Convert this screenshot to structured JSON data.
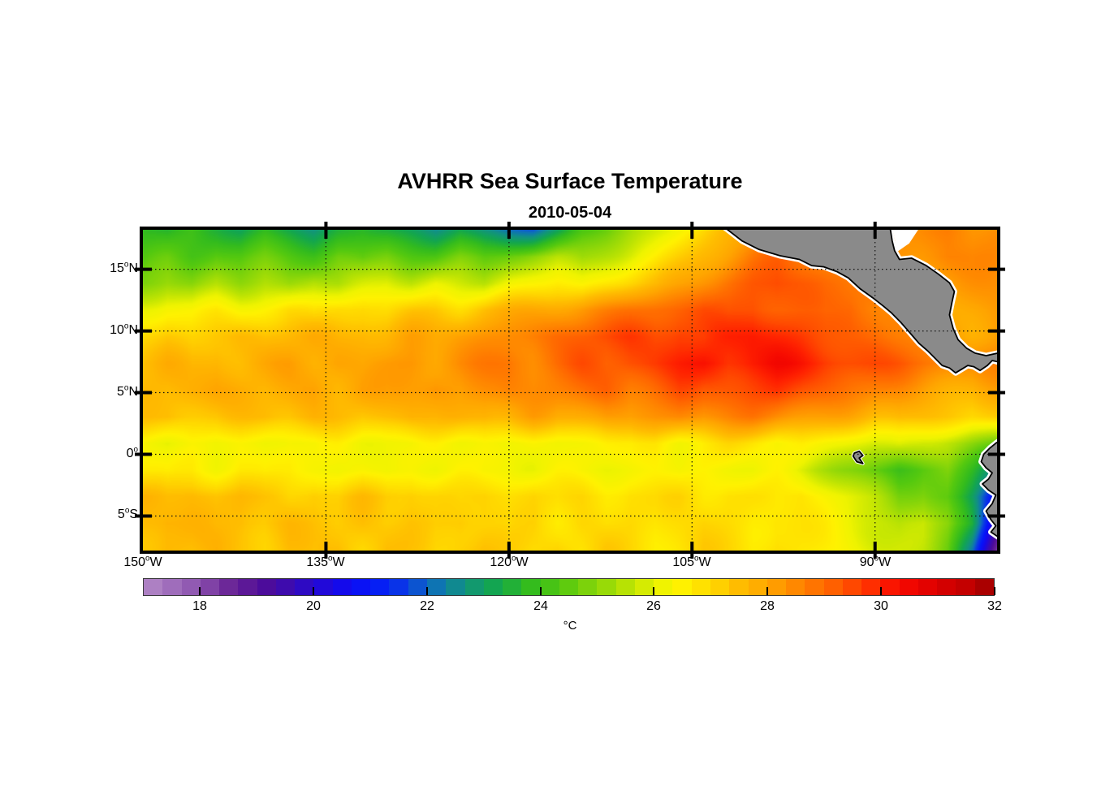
{
  "chart_data": {
    "type": "heatmap",
    "title": "AVHRR Sea Surface Temperature",
    "date": "2010-05-04",
    "units": "°C",
    "lon_range": [
      -150,
      -80
    ],
    "lat_range": [
      -7.8,
      18.2
    ],
    "grid": "on-dotted",
    "lon_ticks": [
      {
        "lon": -150,
        "label": "150",
        "deg": "o",
        "dir": "W"
      },
      {
        "lon": -135,
        "label": "135",
        "deg": "o",
        "dir": "W"
      },
      {
        "lon": -120,
        "label": "120",
        "deg": "o",
        "dir": "W"
      },
      {
        "lon": -105,
        "label": "105",
        "deg": "o",
        "dir": "W"
      },
      {
        "lon": -90,
        "label": "90",
        "deg": "o",
        "dir": "W"
      }
    ],
    "lat_ticks": [
      {
        "lat": 15,
        "label": "15",
        "deg": "o",
        "dir": "N"
      },
      {
        "lat": 10,
        "label": "10",
        "deg": "o",
        "dir": "N"
      },
      {
        "lat": 5,
        "label": "5",
        "deg": "o",
        "dir": "N"
      },
      {
        "lat": 0,
        "label": "0",
        "deg": "o",
        "dir": ""
      },
      {
        "lat": -5,
        "label": "5",
        "deg": "o",
        "dir": "S"
      }
    ],
    "colorbar": {
      "orientation": "horizontal",
      "min": 17,
      "max": 32,
      "segments": 45,
      "tick_values": [
        18,
        20,
        22,
        24,
        26,
        28,
        30,
        32
      ],
      "tick_labels": [
        "18",
        "20",
        "22",
        "24",
        "26",
        "28",
        "30",
        "32"
      ]
    },
    "colormap_stops": [
      [
        17.0,
        "#b48ac8"
      ],
      [
        18.0,
        "#8a50ad"
      ],
      [
        18.6,
        "#662094"
      ],
      [
        19.2,
        "#4b0b9b"
      ],
      [
        19.8,
        "#300ac0"
      ],
      [
        20.4,
        "#1708e8"
      ],
      [
        21.0,
        "#0515fa"
      ],
      [
        21.6,
        "#0a3ae4"
      ],
      [
        22.1,
        "#0e6fba"
      ],
      [
        22.6,
        "#119184"
      ],
      [
        23.2,
        "#13a64e"
      ],
      [
        23.8,
        "#32bb1e"
      ],
      [
        24.4,
        "#55c90f"
      ],
      [
        25.0,
        "#8ad609"
      ],
      [
        25.6,
        "#bfe403"
      ],
      [
        26.1,
        "#eef300"
      ],
      [
        26.5,
        "#fff200"
      ],
      [
        27.0,
        "#ffd900"
      ],
      [
        27.5,
        "#ffbc00"
      ],
      [
        28.0,
        "#ffa500"
      ],
      [
        28.5,
        "#ff8800"
      ],
      [
        29.0,
        "#ff6a00"
      ],
      [
        29.5,
        "#ff4800"
      ],
      [
        30.0,
        "#ff2000"
      ],
      [
        30.4,
        "#f50800"
      ],
      [
        31.0,
        "#dc0000"
      ],
      [
        31.5,
        "#c40000"
      ],
      [
        32.0,
        "#9c0000"
      ]
    ],
    "sst_field": {
      "lon_start": -150,
      "lon_step": 2,
      "n_lon": 36,
      "lat_start": 18.2,
      "lat_end": -7.8,
      "n_lat": 13,
      "values_degC": [
        [
          23.8,
          23.5,
          24.0,
          23.6,
          23.1,
          23.7,
          23.2,
          22.6,
          23.4,
          23.8,
          23.5,
          23.0,
          22.5,
          23.2,
          22.6,
          22.2,
          22.0,
          23.0,
          24.2,
          24.6,
          25.2,
          25.8,
          26.4,
          27.0,
          27.6,
          28.0,
          28.3,
          28.3,
          28.3,
          28.3,
          28.3,
          28.3,
          28.4,
          28.6,
          28.4,
          28.5
        ],
        [
          24.2,
          24.5,
          24.2,
          24.6,
          24.3,
          24.6,
          24.4,
          24.2,
          24.7,
          24.4,
          24.8,
          24.5,
          24.3,
          24.7,
          24.4,
          24.8,
          25.1,
          25.4,
          25.1,
          25.6,
          26.0,
          26.5,
          27.1,
          27.7,
          28.2,
          28.7,
          29.0,
          28.7,
          28.6,
          28.5,
          28.4,
          28.3,
          28.4,
          28.6,
          28.4,
          28.5
        ],
        [
          24.8,
          25.2,
          24.9,
          25.4,
          25.1,
          25.5,
          25.2,
          25.6,
          25.3,
          25.7,
          26.0,
          25.7,
          26.1,
          25.8,
          25.5,
          26.1,
          26.4,
          26.7,
          26.4,
          26.8,
          27.1,
          27.4,
          27.9,
          28.4,
          28.9,
          29.3,
          29.5,
          29.2,
          28.9,
          28.8,
          29.0,
          28.8,
          28.3,
          28.0,
          28.2,
          28.4
        ],
        [
          26.2,
          26.5,
          26.3,
          26.6,
          26.4,
          26.7,
          26.9,
          26.7,
          27.0,
          27.1,
          26.9,
          27.2,
          27.3,
          27.1,
          27.5,
          27.7,
          27.9,
          28.1,
          28.3,
          28.5,
          28.8,
          29.0,
          29.2,
          29.4,
          29.2,
          29.5,
          29.3,
          29.1,
          28.9,
          29.1,
          28.8,
          28.5,
          28.1,
          27.8,
          28.0,
          28.2
        ],
        [
          27.0,
          27.3,
          27.1,
          27.4,
          27.6,
          27.4,
          27.6,
          27.8,
          27.6,
          27.8,
          27.7,
          28.0,
          27.8,
          28.1,
          28.3,
          28.5,
          28.7,
          29.0,
          29.2,
          29.4,
          29.6,
          29.5,
          29.8,
          29.6,
          29.9,
          30.1,
          29.9,
          29.7,
          29.4,
          29.2,
          29.0,
          28.7,
          28.4,
          28.1,
          27.9,
          28.2
        ],
        [
          27.5,
          27.7,
          27.5,
          27.8,
          27.6,
          27.8,
          28.0,
          27.8,
          28.1,
          27.9,
          28.1,
          28.3,
          28.1,
          28.4,
          28.6,
          28.8,
          28.6,
          29.0,
          29.3,
          29.1,
          29.5,
          29.7,
          30.0,
          30.2,
          29.9,
          30.2,
          30.3,
          30.1,
          29.8,
          29.6,
          29.4,
          29.2,
          28.9,
          28.6,
          28.4,
          28.6
        ],
        [
          27.7,
          27.5,
          27.8,
          28.0,
          27.8,
          27.6,
          27.8,
          28.1,
          27.8,
          28.1,
          27.9,
          28.1,
          28.4,
          28.1,
          28.4,
          28.6,
          28.4,
          28.6,
          28.8,
          29.1,
          28.8,
          29.1,
          29.4,
          29.1,
          29.4,
          29.6,
          29.8,
          29.4,
          29.1,
          28.8,
          28.6,
          28.4,
          28.1,
          27.9,
          27.7,
          27.9
        ],
        [
          27.4,
          27.6,
          27.4,
          27.2,
          27.4,
          27.6,
          27.5,
          27.7,
          27.5,
          27.3,
          27.5,
          27.7,
          27.5,
          27.7,
          27.9,
          27.7,
          28.0,
          27.7,
          28.0,
          28.2,
          28.0,
          28.3,
          28.5,
          28.3,
          28.5,
          28.7,
          28.5,
          28.3,
          28.0,
          27.8,
          27.5,
          27.7,
          27.5,
          27.3,
          27.0,
          27.3
        ],
        [
          26.3,
          26.1,
          26.4,
          26.2,
          26.4,
          26.2,
          26.4,
          26.2,
          26.4,
          26.2,
          26.4,
          26.2,
          26.4,
          26.2,
          26.4,
          26.2,
          26.4,
          26.2,
          26.4,
          26.6,
          26.4,
          26.7,
          26.4,
          26.7,
          26.9,
          26.7,
          26.4,
          26.6,
          26.3,
          26.1,
          25.9,
          26.1,
          25.7,
          25.4,
          25.1,
          24.8
        ],
        [
          26.6,
          26.4,
          26.7,
          26.4,
          26.7,
          26.4,
          26.6,
          26.4,
          26.2,
          26.4,
          26.2,
          26.4,
          26.2,
          26.4,
          26.2,
          26.4,
          26.2,
          26.4,
          26.2,
          26.1,
          26.3,
          26.5,
          26.3,
          26.5,
          26.3,
          26.1,
          26.3,
          25.9,
          25.5,
          25.0,
          24.4,
          23.9,
          24.5,
          24.9,
          23.8,
          22.4
        ],
        [
          27.6,
          27.4,
          27.6,
          27.4,
          27.6,
          27.3,
          27.1,
          27.4,
          27.1,
          27.4,
          27.2,
          27.4,
          27.1,
          26.9,
          27.1,
          26.9,
          27.1,
          26.8,
          27.0,
          26.8,
          27.0,
          26.8,
          27.0,
          26.8,
          27.0,
          26.8,
          26.6,
          26.8,
          26.4,
          26.0,
          25.5,
          24.8,
          25.1,
          24.5,
          22.8,
          20.4
        ],
        [
          27.6,
          27.8,
          27.6,
          27.4,
          27.6,
          27.4,
          27.6,
          27.4,
          27.2,
          27.4,
          27.2,
          27.4,
          27.2,
          27.4,
          27.1,
          26.8,
          27.1,
          26.8,
          27.1,
          26.8,
          27.0,
          26.7,
          26.9,
          27.1,
          26.9,
          26.7,
          26.9,
          26.7,
          26.5,
          26.2,
          25.9,
          25.5,
          25.7,
          25.0,
          23.4,
          19.6
        ],
        [
          27.4,
          27.7,
          27.4,
          27.7,
          27.4,
          27.2,
          27.5,
          27.2,
          27.5,
          27.2,
          27.5,
          27.2,
          27.0,
          27.3,
          27.5,
          27.2,
          26.9,
          27.2,
          26.9,
          27.2,
          26.9,
          26.7,
          26.9,
          27.2,
          26.9,
          26.7,
          27.0,
          26.7,
          26.5,
          26.3,
          26.0,
          25.8,
          25.4,
          24.6,
          22.4,
          18.4
        ]
      ]
    },
    "land": {
      "fill": "#8a8a8a",
      "outline": "#000000",
      "fringe": "#ffffff",
      "polygons": {
        "central_america": [
          [
            -102.6,
            18.6
          ],
          [
            -100.9,
            17.3
          ],
          [
            -99.5,
            16.6
          ],
          [
            -97.8,
            16.1
          ],
          [
            -96.2,
            15.8
          ],
          [
            -95.2,
            15.3
          ],
          [
            -94.2,
            15.2
          ],
          [
            -93.1,
            14.8
          ],
          [
            -92.2,
            14.3
          ],
          [
            -91.2,
            13.4
          ],
          [
            -90.2,
            12.7
          ],
          [
            -89.3,
            12.0
          ],
          [
            -88.7,
            11.5
          ],
          [
            -87.9,
            10.7
          ],
          [
            -87.1,
            9.8
          ],
          [
            -86.4,
            9.0
          ],
          [
            -85.7,
            8.4
          ],
          [
            -85.1,
            7.8
          ],
          [
            -84.5,
            7.2
          ],
          [
            -83.9,
            7.0
          ],
          [
            -83.4,
            6.6
          ],
          [
            -82.9,
            6.9
          ],
          [
            -82.4,
            7.2
          ],
          [
            -81.9,
            7.1
          ],
          [
            -81.4,
            6.8
          ],
          [
            -80.8,
            7.2
          ],
          [
            -80.4,
            7.6
          ],
          [
            -79.5,
            7.4
          ],
          [
            -79.5,
            8.3
          ],
          [
            -80.9,
            8.0
          ],
          [
            -81.8,
            8.2
          ],
          [
            -82.5,
            8.6
          ],
          [
            -83.2,
            9.3
          ],
          [
            -83.6,
            10.2
          ],
          [
            -83.9,
            11.3
          ],
          [
            -83.7,
            12.3
          ],
          [
            -83.5,
            13.2
          ],
          [
            -83.9,
            13.9
          ],
          [
            -84.8,
            14.6
          ],
          [
            -85.8,
            15.3
          ],
          [
            -87.0,
            15.9
          ],
          [
            -88.0,
            15.8
          ],
          [
            -88.4,
            16.5
          ],
          [
            -88.6,
            17.3
          ],
          [
            -88.8,
            18.6
          ]
        ],
        "south_america": [
          [
            -79.5,
            1.3
          ],
          [
            -80.1,
            0.9
          ],
          [
            -80.6,
            0.5
          ],
          [
            -81.1,
            0.0
          ],
          [
            -81.3,
            -0.6
          ],
          [
            -80.9,
            -1.1
          ],
          [
            -80.4,
            -1.5
          ],
          [
            -80.7,
            -2.0
          ],
          [
            -81.2,
            -2.4
          ],
          [
            -80.7,
            -2.9
          ],
          [
            -80.1,
            -3.3
          ],
          [
            -80.4,
            -4.0
          ],
          [
            -80.9,
            -4.6
          ],
          [
            -80.5,
            -5.3
          ],
          [
            -80.1,
            -5.8
          ],
          [
            -80.5,
            -6.3
          ],
          [
            -79.9,
            -6.7
          ],
          [
            -79.5,
            -6.9
          ]
        ],
        "galapagos": [
          [
            -91.7,
            0.1
          ],
          [
            -91.3,
            0.25
          ],
          [
            -91.0,
            -0.1
          ],
          [
            -91.3,
            -0.3
          ],
          [
            -91.0,
            -0.75
          ],
          [
            -91.5,
            -0.6
          ],
          [
            -91.8,
            -0.15
          ]
        ],
        "nodata_white_patch": [
          [
            -88.6,
            18.6
          ],
          [
            -86.2,
            18.6
          ],
          [
            -87.2,
            17.1
          ],
          [
            -88.2,
            16.4
          ]
        ]
      }
    }
  }
}
